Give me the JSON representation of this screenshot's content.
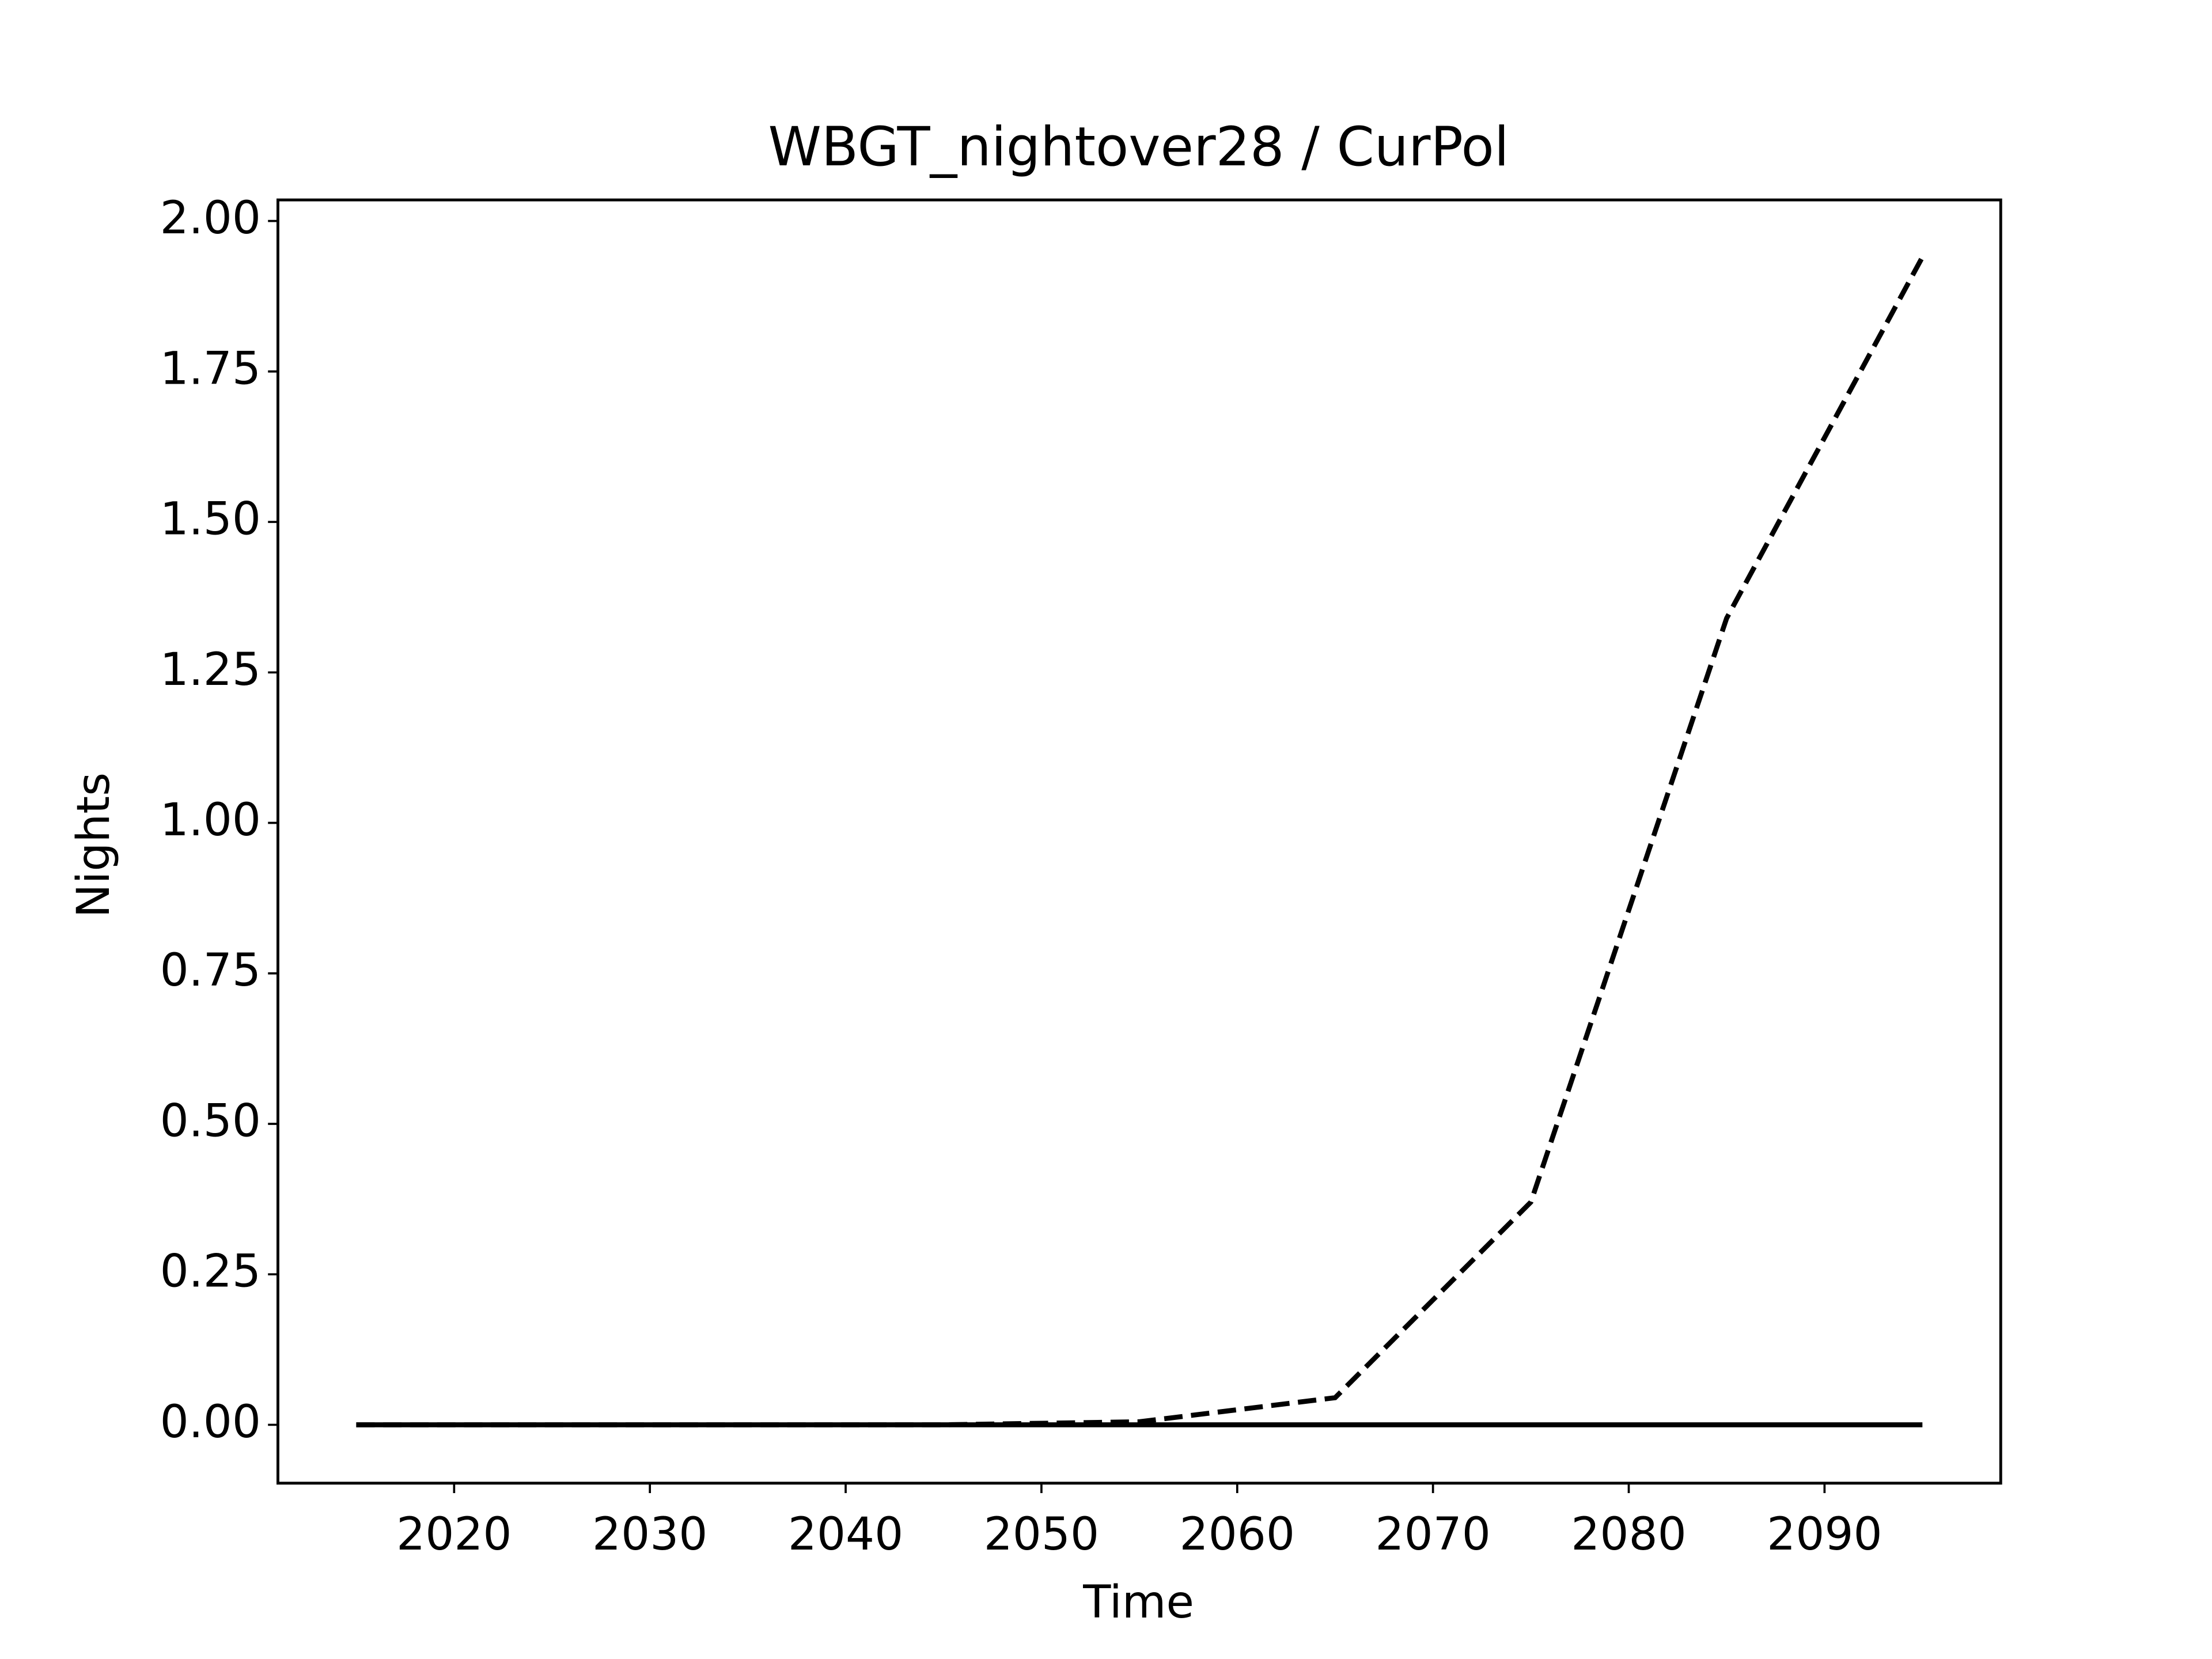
{
  "chart_data": {
    "type": "line",
    "title": "WBGT_nightover28 / CurPol",
    "xlabel": "Time",
    "ylabel": "Nights",
    "x": [
      2015,
      2025,
      2035,
      2045,
      2055,
      2065,
      2075,
      2085,
      2095
    ],
    "series": [
      {
        "color": "#000000",
        "linestyle": "dashed",
        "values": [
          0,
          0,
          0,
          0,
          0.005,
          0.045,
          0.37,
          1.34,
          1.94
        ]
      },
      {
        "color": "#000000",
        "linestyle": "solid",
        "values": [
          0,
          0,
          0,
          0,
          0,
          0,
          0,
          0,
          0
        ]
      }
    ],
    "xlim": [
      2011,
      2099
    ],
    "ylim": [
      -0.097,
      2.035
    ],
    "xticks": [
      2020,
      2030,
      2040,
      2050,
      2060,
      2070,
      2080,
      2090
    ],
    "yticks": [
      {
        "value": 0,
        "label": "0.00"
      },
      {
        "value": 0.25,
        "label": "0.25"
      },
      {
        "value": 0.5,
        "label": "0.50"
      },
      {
        "value": 0.75,
        "label": "0.75"
      },
      {
        "value": 1,
        "label": "1.00"
      },
      {
        "value": 1.25,
        "label": "1.25"
      },
      {
        "value": 1.5,
        "label": "1.50"
      },
      {
        "value": 1.75,
        "label": "1.75"
      },
      {
        "value": 2,
        "label": "2.00"
      }
    ],
    "grid": false
  }
}
